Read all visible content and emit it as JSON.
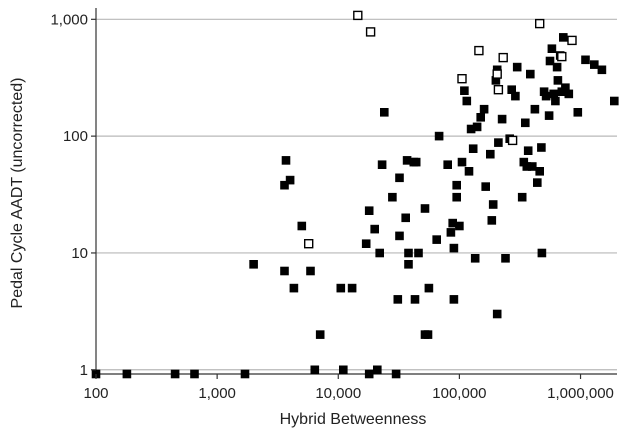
{
  "chart_data": {
    "type": "scatter",
    "xlabel": "Hybrid Betweenness",
    "ylabel": "Pedal Cycle AADT (uncorrected)",
    "x_scale": "log",
    "y_scale": "log",
    "xlim": [
      100,
      2000000
    ],
    "ylim": [
      0.92,
      1250
    ],
    "x_ticks": [
      100,
      1000,
      10000,
      100000,
      1000000
    ],
    "x_tick_labels": [
      "100",
      "1,000",
      "10,000",
      "100,000",
      "1,000,000"
    ],
    "y_ticks": [
      1,
      10,
      100,
      1000
    ],
    "y_tick_labels": [
      "1",
      "10",
      "100",
      "1,000"
    ],
    "grid": "horizontal",
    "series": [
      {
        "marker": "filled-square",
        "color": "#000000",
        "points": [
          [
            100,
            0.92
          ],
          [
            180,
            0.92
          ],
          [
            450,
            0.92
          ],
          [
            650,
            0.92
          ],
          [
            1700,
            0.92
          ],
          [
            18000,
            0.92
          ],
          [
            30000,
            0.92
          ],
          [
            6400,
            1
          ],
          [
            11000,
            1
          ],
          [
            21000,
            1
          ],
          [
            7100,
            2
          ],
          [
            52000,
            2
          ],
          [
            55000,
            2
          ],
          [
            10500,
            5
          ],
          [
            13000,
            5
          ],
          [
            4300,
            5
          ],
          [
            56000,
            5
          ],
          [
            3600,
            7
          ],
          [
            5900,
            7
          ],
          [
            2000,
            8
          ],
          [
            38000,
            8
          ],
          [
            31000,
            4
          ],
          [
            43000,
            4
          ],
          [
            90000,
            4
          ],
          [
            205000,
            3
          ],
          [
            5000,
            17
          ],
          [
            3600,
            38
          ],
          [
            3700,
            62
          ],
          [
            4000,
            42
          ],
          [
            17000,
            12
          ],
          [
            18000,
            23
          ],
          [
            20000,
            16
          ],
          [
            22000,
            10
          ],
          [
            23000,
            57
          ],
          [
            24000,
            160
          ],
          [
            28000,
            30
          ],
          [
            32000,
            44
          ],
          [
            32000,
            14
          ],
          [
            36000,
            20
          ],
          [
            37000,
            62
          ],
          [
            38000,
            10
          ],
          [
            42000,
            60
          ],
          [
            44000,
            60
          ],
          [
            46000,
            10
          ],
          [
            52000,
            24
          ],
          [
            65000,
            13
          ],
          [
            68000,
            100
          ],
          [
            80000,
            57
          ],
          [
            85000,
            15
          ],
          [
            88000,
            18
          ],
          [
            90000,
            11
          ],
          [
            95000,
            30
          ],
          [
            95000,
            38
          ],
          [
            100000,
            17
          ],
          [
            105000,
            60
          ],
          [
            110000,
            245
          ],
          [
            115000,
            200
          ],
          [
            120000,
            50
          ],
          [
            125000,
            115
          ],
          [
            130000,
            78
          ],
          [
            135000,
            9
          ],
          [
            140000,
            120
          ],
          [
            150000,
            145
          ],
          [
            160000,
            170
          ],
          [
            165000,
            37
          ],
          [
            180000,
            70
          ],
          [
            185000,
            19
          ],
          [
            190000,
            26
          ],
          [
            200000,
            300
          ],
          [
            205000,
            370
          ],
          [
            210000,
            88
          ],
          [
            225000,
            140
          ],
          [
            240000,
            9
          ],
          [
            260000,
            95
          ],
          [
            270000,
            250
          ],
          [
            290000,
            220
          ],
          [
            300000,
            390
          ],
          [
            330000,
            30
          ],
          [
            340000,
            60
          ],
          [
            350000,
            130
          ],
          [
            360000,
            55
          ],
          [
            370000,
            75
          ],
          [
            385000,
            340
          ],
          [
            400000,
            55
          ],
          [
            420000,
            170
          ],
          [
            440000,
            40
          ],
          [
            460000,
            50
          ],
          [
            475000,
            80
          ],
          [
            480000,
            10
          ],
          [
            500000,
            240
          ],
          [
            520000,
            220
          ],
          [
            550000,
            150
          ],
          [
            560000,
            440
          ],
          [
            580000,
            560
          ],
          [
            600000,
            230
          ],
          [
            620000,
            200
          ],
          [
            640000,
            390
          ],
          [
            650000,
            300
          ],
          [
            680000,
            490
          ],
          [
            700000,
            240
          ],
          [
            720000,
            700
          ],
          [
            750000,
            260
          ],
          [
            800000,
            230
          ],
          [
            950000,
            160
          ],
          [
            1100000,
            450
          ],
          [
            1300000,
            410
          ],
          [
            1500000,
            370
          ],
          [
            1900000,
            200
          ]
        ]
      },
      {
        "marker": "open-square",
        "color": "#000000",
        "points": [
          [
            14500,
            1080
          ],
          [
            18500,
            780
          ],
          [
            5700,
            12
          ],
          [
            105000,
            310
          ],
          [
            145000,
            540
          ],
          [
            205000,
            340
          ],
          [
            210000,
            250
          ],
          [
            230000,
            470
          ],
          [
            275000,
            92
          ],
          [
            460000,
            920
          ],
          [
            700000,
            480
          ],
          [
            850000,
            660
          ]
        ]
      }
    ]
  }
}
